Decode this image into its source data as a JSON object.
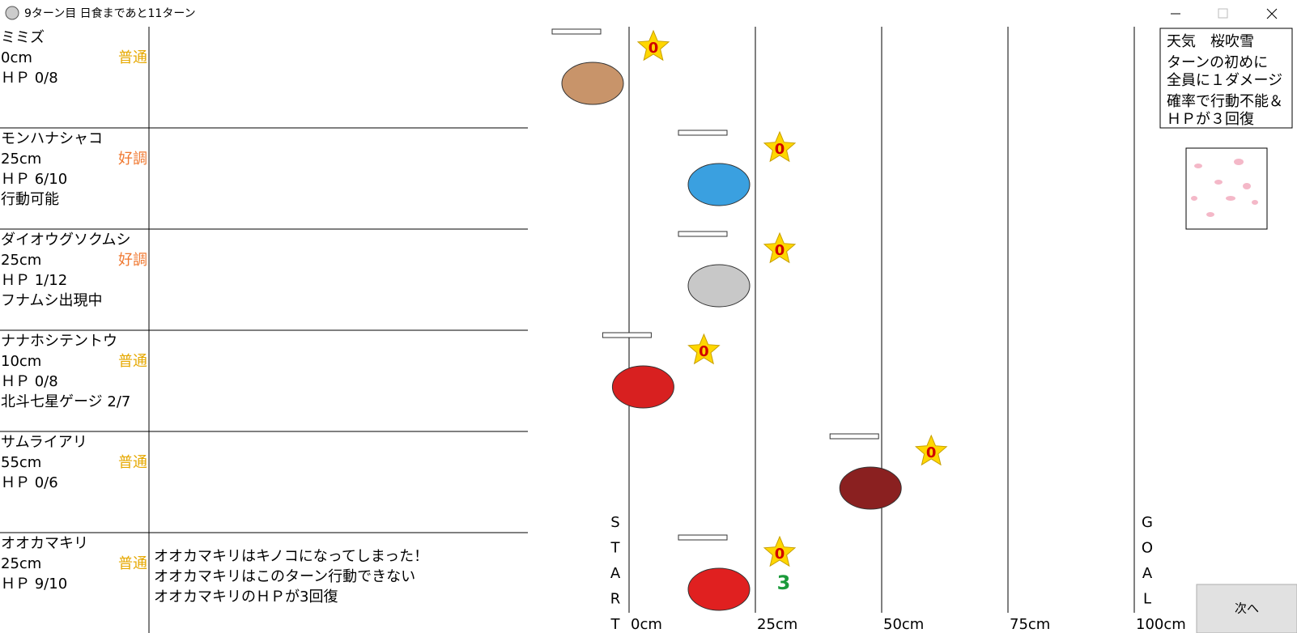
{
  "window": {
    "title": "9ターン目 日食まであと11ターン"
  },
  "creatures": [
    {
      "name": "ミミズ",
      "position": {
        "value": 0,
        "label": "0cm"
      },
      "condition": "普通",
      "condition_color": "#e6a800",
      "hp": "ＨＰ 0/8",
      "status": null,
      "messages": [],
      "badge": "0",
      "color": "#c8946a"
    },
    {
      "name": "モンハナシャコ",
      "position": {
        "value": 25,
        "label": "25cm"
      },
      "condition": "好調",
      "condition_color": "#f07830",
      "hp": "ＨＰ 6/10",
      "status": "行動可能",
      "messages": [],
      "badge": "0",
      "color": "#3aa0e0"
    },
    {
      "name": "ダイオウグソクムシ",
      "position": {
        "value": 25,
        "label": "25cm"
      },
      "condition": "好調",
      "condition_color": "#f07830",
      "hp": "ＨＰ 1/12",
      "status": "フナムシ出現中",
      "messages": [],
      "badge": "0",
      "color": "#c8c8c8"
    },
    {
      "name": "ナナホシテントウ",
      "position": {
        "value": 10,
        "label": "10cm"
      },
      "condition": "普通",
      "condition_color": "#e6a800",
      "hp": "ＨＰ 0/8",
      "status": "北斗七星ゲージ 2/7",
      "messages": [],
      "badge": "0",
      "color": "#d82020"
    },
    {
      "name": "サムライアリ",
      "position": {
        "value": 55,
        "label": "55cm"
      },
      "condition": "普通",
      "condition_color": "#e6a800",
      "hp": "ＨＰ 0/6",
      "status": null,
      "messages": [],
      "badge": "0",
      "color": "#8a2020"
    },
    {
      "name": "オオカマキリ",
      "position": {
        "value": 25,
        "label": "25cm"
      },
      "condition": "普通",
      "condition_color": "#e6a800",
      "hp": "ＨＰ 9/10",
      "status": null,
      "messages": [
        "オオカマキリはキノコになってしまった！",
        "オオカマキリはこのターン行動できない",
        "オオカマキリのＨＰが3回復"
      ],
      "badge": "0",
      "badge2": "3",
      "color": "#e02020"
    }
  ],
  "track": {
    "ticks": [
      {
        "value": 0,
        "label": "0cm"
      },
      {
        "value": 25,
        "label": "25cm"
      },
      {
        "value": 50,
        "label": "50cm"
      },
      {
        "value": 75,
        "label": "75cm"
      },
      {
        "value": 100,
        "label": "100cm"
      }
    ],
    "start": [
      "S",
      "T",
      "A",
      "R",
      "T"
    ],
    "goal": [
      "G",
      "O",
      "A",
      "L"
    ]
  },
  "weather": {
    "lines": [
      "天気　桜吹雪",
      "ターンの初めに",
      "全員に１ダメージ",
      "確率で行動不能＆",
      "ＨＰが３回復"
    ]
  },
  "button": {
    "label": "次へ"
  }
}
